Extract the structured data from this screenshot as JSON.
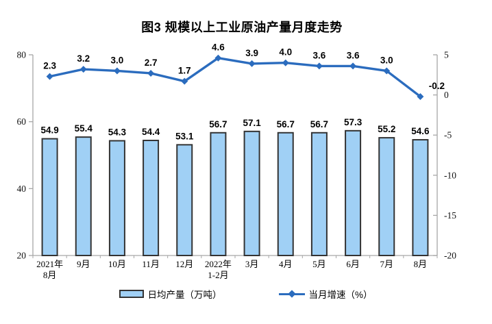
{
  "chart_data": {
    "type": "bar+line",
    "title": "图3 规模以上工业原油产量月度走势",
    "categories": [
      [
        "2021年",
        "8月"
      ],
      [
        "9月"
      ],
      [
        "10月"
      ],
      [
        "11月"
      ],
      [
        "12月"
      ],
      [
        "2022年",
        "1-2月"
      ],
      [
        "3月"
      ],
      [
        "4月"
      ],
      [
        "5月"
      ],
      [
        "6月"
      ],
      [
        "7月"
      ],
      [
        "8月"
      ]
    ],
    "series": [
      {
        "name": "日均产量（万吨）",
        "type": "bar",
        "axis": "left",
        "values": [
          54.9,
          55.4,
          54.3,
          54.4,
          53.1,
          56.7,
          57.1,
          56.7,
          56.7,
          57.3,
          55.2,
          54.6
        ]
      },
      {
        "name": "当月增速（%）",
        "type": "line",
        "axis": "right",
        "values": [
          2.3,
          3.2,
          3.0,
          2.7,
          1.7,
          4.6,
          3.9,
          4.0,
          3.6,
          3.6,
          3.0,
          -0.2
        ]
      }
    ],
    "left_axis": {
      "min": 20,
      "max": 80,
      "ticks": [
        80,
        60,
        40,
        20
      ]
    },
    "right_axis": {
      "min": -20,
      "max": 5,
      "ticks": [
        5,
        0,
        -5,
        -10,
        -15,
        -20
      ]
    },
    "grid": false,
    "legend_position": "bottom",
    "colors": {
      "bar_fill": "#A0D0F5",
      "bar_border": "#333333",
      "line": "#2B6CBE",
      "axis": "#A6A6A6",
      "text": "#111111"
    }
  }
}
